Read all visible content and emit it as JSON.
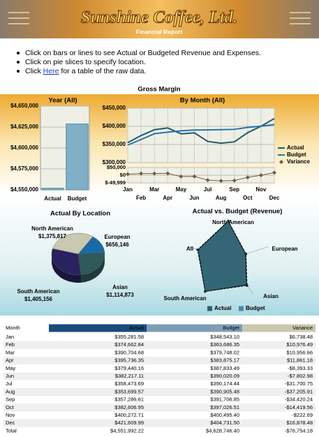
{
  "header": {
    "title": "Sunshine Coffee, Ltd.",
    "subtitle": "Financial Report"
  },
  "instructions": [
    "Click on bars or lines to see Actual or Budgeted Revenue and Expenses.",
    "Click on pie slices to specify location.",
    {
      "before": "Click ",
      "link": "Here",
      "after": " for a table of the raw data."
    }
  ],
  "section_title": "Gross Margin",
  "chart_data": [
    {
      "type": "bar",
      "title": "Year (All)",
      "categories": [
        "Actual",
        "Budget"
      ],
      "values": [
        4551992.22,
        4628746.4
      ],
      "color": "#7fb0c8",
      "ylim": [
        4550000,
        4650000
      ],
      "yticks": [
        {
          "value": 4550000,
          "label": "$4,550,000"
        },
        {
          "value": 4575000,
          "label": "$4,575,000"
        },
        {
          "value": 4600000,
          "label": "$4,600,000"
        },
        {
          "value": 4625000,
          "label": "$4,625,000"
        },
        {
          "value": 4650000,
          "label": "$4,650,000"
        }
      ],
      "grid": true
    },
    {
      "type": "line",
      "title": "By Month (All)",
      "categories": [
        "Jan",
        "Feb",
        "Mar",
        "Apr",
        "May",
        "Jun",
        "Jul",
        "Aug",
        "Sep",
        "Oct",
        "Nov",
        "Dec"
      ],
      "series": [
        {
          "name": "Actual",
          "color": "#1f5a66",
          "values": [
            355281.58,
            374662.84,
            390704.68,
            395736.35,
            379440.16,
            382217.11,
            358473.69,
            353699.57,
            357286.61,
            382606.95,
            400272.71,
            421609.99
          ]
        },
        {
          "name": "Budget",
          "color": "#2a70b0",
          "values": [
            348543.1,
            363686.35,
            379748.02,
            383875.17,
            387833.49,
            390020.09,
            390174.44,
            390905.48,
            391706.85,
            397026.51,
            400495.4,
            404731.5
          ]
        },
        {
          "name": "Variance",
          "color": "#7a5a3a",
          "axis": "y2",
          "marker": "diamond",
          "values": [
            6738.48,
            10976.49,
            10956.66,
            11861.18,
            -8393.33,
            -7802.98,
            -31700.75,
            -37205.91,
            -34420.24,
            -14419.56,
            -222.69,
            16878.48
          ]
        }
      ],
      "ylim": [
        300000,
        450000
      ],
      "yticks": [
        {
          "value": 300000,
          "label": "$300,000"
        },
        {
          "value": 350000,
          "label": "$350,000"
        },
        {
          "value": 400000,
          "label": "$400,000"
        },
        {
          "value": 450000,
          "label": "$450,000"
        }
      ],
      "y2lim": [
        -49999,
        50000
      ],
      "y2ticks": [
        {
          "value": 50000,
          "label": "$50,000"
        },
        {
          "value": 0,
          "label": "$0"
        },
        {
          "value": -49999,
          "label": "$-49,999"
        }
      ],
      "grid": true,
      "legend": "right"
    },
    {
      "type": "pie",
      "title": "Actual By Location",
      "categories": [
        "North American",
        "European",
        "Asian",
        "South American"
      ],
      "values": [
        1375817,
        656146,
        1114873,
        1405156
      ],
      "value_labels": [
        "$1,375,817",
        "$656,146",
        "$1,114,873",
        "$1,405,156"
      ],
      "colors": [
        "#c9c8b0",
        "#1a6aa8",
        "#2e5a5a",
        "#2a2260"
      ]
    },
    {
      "type": "radar",
      "title": "Actual vs. Budget (Revenue)",
      "categories": [
        "North American",
        "European",
        "Asian",
        "South American",
        "All"
      ],
      "series": [
        {
          "name": "Actual",
          "color": "#2e5f6e",
          "values": [
            1375817,
            656146,
            1114873,
            1405156,
            1137998
          ]
        },
        {
          "name": "Budget",
          "color": "#4a8aa8",
          "values": [
            1390000,
            670000,
            1150000,
            1410000,
            1157187
          ]
        }
      ],
      "rlim": [
        0,
        1500000
      ],
      "legend": "bottom"
    }
  ],
  "table": {
    "header": [
      "Month",
      "Actual",
      "Budget",
      "Variance"
    ],
    "negative_color": "#cc0000",
    "rows": [
      [
        "Jan",
        "$355,281.58",
        "$348,543.10",
        "$6,738.48"
      ],
      [
        "Feb",
        "$374,662.84",
        "$363,686.35",
        "$10,976.49"
      ],
      [
        "Mar",
        "$390,704.68",
        "$379,748.02",
        "$10,956.66"
      ],
      [
        "Apr",
        "$395,736.35",
        "$383,875.17",
        "$11,861.18"
      ],
      [
        "May",
        "$379,440.16",
        "$387,833.49",
        "-$8,393.33"
      ],
      [
        "Jun",
        "$382,217.11",
        "$390,020.09",
        "-$7,802.98"
      ],
      [
        "Jul",
        "$358,473.69",
        "$390,174.44",
        "-$31,700.75"
      ],
      [
        "Aug",
        "$353,699.57",
        "$390,905.48",
        "-$37,205.91"
      ],
      [
        "Sep",
        "$357,286.61",
        "$391,706.85",
        "-$34,420.24"
      ],
      [
        "Oct",
        "$382,606.95",
        "$397,026.51",
        "-$14,419.56"
      ],
      [
        "Nov",
        "$400,272.71",
        "$400,495.40",
        "-$222.69"
      ],
      [
        "Dec",
        "$421,609.99",
        "$404,731.50",
        "$16,878.48"
      ],
      [
        "Total",
        "$4,551,992.22",
        "$4,628,746.40",
        "-$76,754.18"
      ]
    ]
  }
}
